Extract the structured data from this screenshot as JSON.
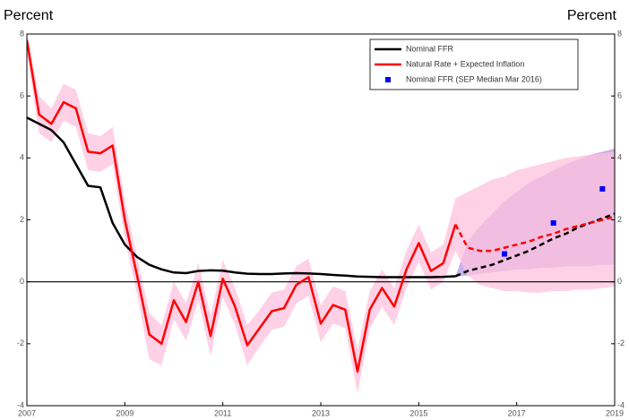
{
  "chart_data": {
    "type": "line",
    "ylabel": "Percent",
    "y2label": "Percent",
    "x": [
      2007,
      2007.25,
      2007.5,
      2007.75,
      2008,
      2008.25,
      2008.5,
      2008.75,
      2009,
      2009.25,
      2009.5,
      2009.75,
      2010,
      2010.25,
      2010.5,
      2010.75,
      2011,
      2011.25,
      2011.5,
      2011.75,
      2012,
      2012.25,
      2012.5,
      2012.75,
      2013,
      2013.25,
      2013.5,
      2013.75,
      2014,
      2014.25,
      2014.5,
      2014.75,
      2015,
      2015.25,
      2015.5,
      2015.75,
      2016,
      2016.25,
      2016.5,
      2016.75,
      2017,
      2017.25,
      2017.5,
      2017.75,
      2018,
      2018.25,
      2018.5,
      2018.75,
      2019
    ],
    "forecast_from": 2015.75,
    "series": [
      {
        "name": "Nominal FFR",
        "color": "#000000",
        "band_color": "#b49ae6",
        "values": [
          5.3,
          5.1,
          4.9,
          4.5,
          3.8,
          3.1,
          3.05,
          1.9,
          1.2,
          0.8,
          0.55,
          0.4,
          0.3,
          0.28,
          0.35,
          0.37,
          0.36,
          0.3,
          0.26,
          0.25,
          0.25,
          0.27,
          0.28,
          0.27,
          0.25,
          0.22,
          0.2,
          0.17,
          0.16,
          0.15,
          0.15,
          0.15,
          0.15,
          0.15,
          0.16,
          0.18,
          0.35,
          0.45,
          0.55,
          0.7,
          0.85,
          1.0,
          1.2,
          1.4,
          1.55,
          1.75,
          1.9,
          2.05,
          2.2
        ],
        "band_upper": [
          null,
          null,
          null,
          null,
          null,
          null,
          null,
          null,
          null,
          null,
          null,
          null,
          null,
          null,
          null,
          null,
          null,
          null,
          null,
          null,
          null,
          null,
          null,
          null,
          null,
          null,
          null,
          null,
          null,
          null,
          null,
          null,
          null,
          null,
          null,
          0.18,
          1.3,
          1.8,
          2.2,
          2.6,
          2.9,
          3.2,
          3.4,
          3.6,
          3.8,
          3.95,
          4.1,
          4.2,
          4.3
        ],
        "band_lower": [
          null,
          null,
          null,
          null,
          null,
          null,
          null,
          null,
          null,
          null,
          null,
          null,
          null,
          null,
          null,
          null,
          null,
          null,
          null,
          null,
          null,
          null,
          null,
          null,
          null,
          null,
          null,
          null,
          null,
          null,
          null,
          null,
          null,
          null,
          null,
          0.18,
          0.2,
          0.25,
          0.3,
          0.35,
          0.4,
          0.4,
          0.45,
          0.45,
          0.5,
          0.5,
          0.5,
          0.55,
          0.55
        ]
      },
      {
        "name": "Natural Rate + Expected Inflation",
        "color": "#ff0000",
        "band_color": "#ffc2de",
        "values": [
          7.8,
          5.4,
          5.1,
          5.8,
          5.6,
          4.2,
          4.15,
          4.4,
          2.0,
          0.2,
          -1.7,
          -2.0,
          -0.6,
          -1.3,
          0.0,
          -1.75,
          0.1,
          -0.8,
          -2.05,
          -1.5,
          -0.95,
          -0.85,
          -0.1,
          0.15,
          -1.35,
          -0.75,
          -0.9,
          -2.9,
          -0.9,
          -0.2,
          -0.8,
          0.4,
          1.25,
          0.35,
          0.6,
          1.85,
          1.1,
          1.0,
          1.0,
          1.1,
          1.2,
          1.3,
          1.45,
          1.55,
          1.7,
          1.8,
          1.9,
          2.0,
          2.1
        ],
        "band_upper": [
          8.0,
          6.0,
          5.6,
          6.4,
          6.2,
          4.8,
          4.7,
          5.0,
          2.6,
          0.8,
          -1.0,
          -1.4,
          0.0,
          -0.7,
          0.6,
          -1.1,
          0.7,
          -0.2,
          -1.4,
          -0.9,
          -0.35,
          -0.25,
          0.5,
          0.75,
          -0.75,
          -0.15,
          -0.3,
          -2.2,
          -0.3,
          0.4,
          -0.2,
          1.0,
          1.85,
          0.95,
          1.2,
          2.7,
          2.9,
          3.1,
          3.3,
          3.4,
          3.6,
          3.7,
          3.8,
          3.9,
          4.0,
          4.05,
          4.1,
          4.15,
          4.2
        ],
        "band_lower": [
          7.4,
          4.8,
          4.5,
          5.2,
          5.0,
          3.6,
          3.55,
          3.8,
          1.4,
          -0.4,
          -2.5,
          -2.7,
          -1.2,
          -1.9,
          -0.6,
          -2.4,
          -0.5,
          -1.4,
          -2.7,
          -2.1,
          -1.55,
          -1.45,
          -0.7,
          -0.45,
          -1.95,
          -1.35,
          -1.5,
          -3.6,
          -1.5,
          -0.8,
          -1.4,
          -0.2,
          0.65,
          -0.25,
          0.0,
          1.0,
          0.2,
          -0.1,
          -0.2,
          -0.3,
          -0.3,
          -0.35,
          -0.35,
          -0.3,
          -0.3,
          -0.25,
          -0.25,
          -0.2,
          -0.15
        ]
      }
    ],
    "points": {
      "name": "Nominal FFR (SEP Median Mar 2016)",
      "color": "#0000ff",
      "x": [
        2016.75,
        2017.75,
        2018.75
      ],
      "values": [
        0.9,
        1.9,
        3.0
      ]
    },
    "xlim": [
      2007,
      2019
    ],
    "xticks": [
      2007,
      2009,
      2011,
      2013,
      2015,
      2017,
      2019
    ],
    "ylim": [
      -4,
      8
    ],
    "yticks": [
      -4,
      -2,
      0,
      2,
      4,
      6,
      8
    ],
    "y2lim": [
      -4,
      8
    ],
    "y2ticks": [
      -4,
      -2,
      0,
      2,
      4,
      6,
      8
    ],
    "zero_line": 0,
    "legend": "upper right"
  }
}
